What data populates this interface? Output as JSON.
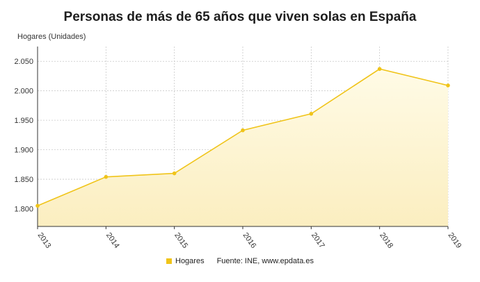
{
  "chart_data": {
    "type": "area",
    "title": "Personas de más de 65 años que viven solas en España",
    "ylabel": "Hogares (Unidades)",
    "xlabel": "",
    "x": [
      "2013",
      "2014",
      "2015",
      "2016",
      "2017",
      "2018",
      "2019"
    ],
    "series": [
      {
        "name": "Hogares",
        "values": [
          1805,
          1854,
          1860,
          1933,
          1961,
          2037,
          2009
        ]
      }
    ],
    "ylim": [
      1770,
      2075
    ],
    "yticks": [
      1800,
      1850,
      1900,
      1950,
      2000,
      2050
    ],
    "ytick_labels": [
      "1.800",
      "1.850",
      "1.900",
      "1.950",
      "2.000",
      "2.050"
    ],
    "grid": true,
    "legend_position": "bottom",
    "colors": {
      "line": "#f0c419",
      "fill_top": "#fffbe6",
      "fill_bottom": "#fbeec0"
    }
  },
  "footer": {
    "legend_label": "Hogares",
    "source": "Fuente: INE, www.epdata.es"
  }
}
